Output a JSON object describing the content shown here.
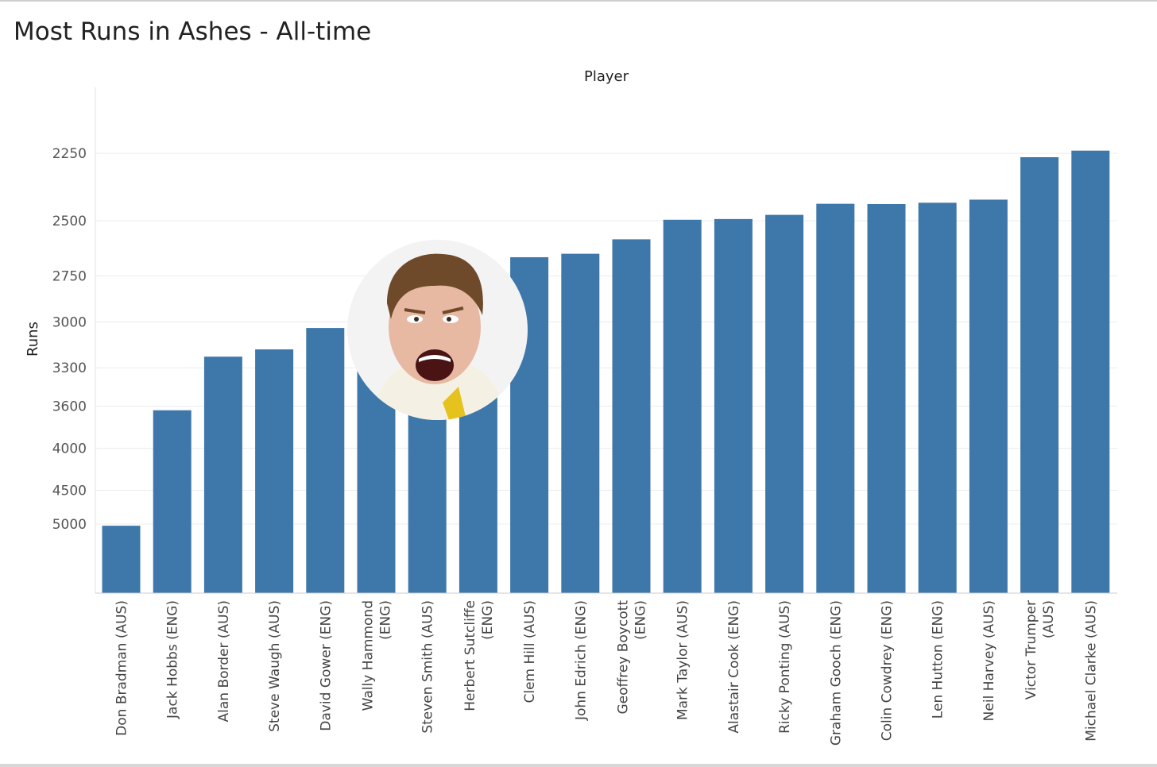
{
  "title": "Most Runs in Ashes - All-time",
  "chart_data": {
    "type": "bar",
    "title": "Most Runs in Ashes - All-time",
    "xlabel": "Player",
    "ylabel": "Runs",
    "categories": [
      [
        "Don Bradman (AUS)"
      ],
      [
        "Jack Hobbs (ENG)"
      ],
      [
        "Alan Border (AUS)"
      ],
      [
        "Steve Waugh (AUS)"
      ],
      [
        "David Gower (ENG)"
      ],
      [
        "Wally Hammond",
        "(ENG)"
      ],
      [
        "Steven Smith (AUS)"
      ],
      [
        "Herbert Sutcliffe",
        "(ENG)"
      ],
      [
        "Clem Hill (AUS)"
      ],
      [
        "John Edrich (ENG)"
      ],
      [
        "Geoffrey Boycott",
        "(ENG)"
      ],
      [
        "Mark Taylor (AUS)"
      ],
      [
        "Alastair Cook (ENG)"
      ],
      [
        "Ricky Ponting (AUS)"
      ],
      [
        "Graham Gooch (ENG)"
      ],
      [
        "Colin Cowdrey (ENG)"
      ],
      [
        "Len Hutton (ENG)"
      ],
      [
        "Neil Harvey (AUS)"
      ],
      [
        "Victor Trumper",
        "(AUS)"
      ],
      [
        "Michael Clarke (AUS)"
      ]
    ],
    "values": [
      5028,
      3636,
      3222,
      3173,
      3037,
      2852,
      2800,
      2741,
      2660,
      2644,
      2579,
      2496,
      2493,
      2476,
      2432,
      2433,
      2428,
      2416,
      2263,
      2241
    ],
    "yticks": [
      2250,
      2500,
      2750,
      3000,
      3300,
      3600,
      4000,
      4500,
      5000
    ],
    "ytick_labels": [
      "2250",
      "2500",
      "2750",
      "3000",
      "3300",
      "3600",
      "4000",
      "4500",
      "5000"
    ],
    "ylim": [
      2150,
      5050
    ],
    "y_scale": "reciprocal",
    "grid": true,
    "bar_color": "#3e78ab"
  },
  "photo": {
    "icon": "player-portrait-icon",
    "background": "#f3f3f3",
    "skin": "#e7b9a3",
    "hair": "#6e4a2a",
    "shirt": "#f4f1e4",
    "collar": "#e6c21f"
  }
}
